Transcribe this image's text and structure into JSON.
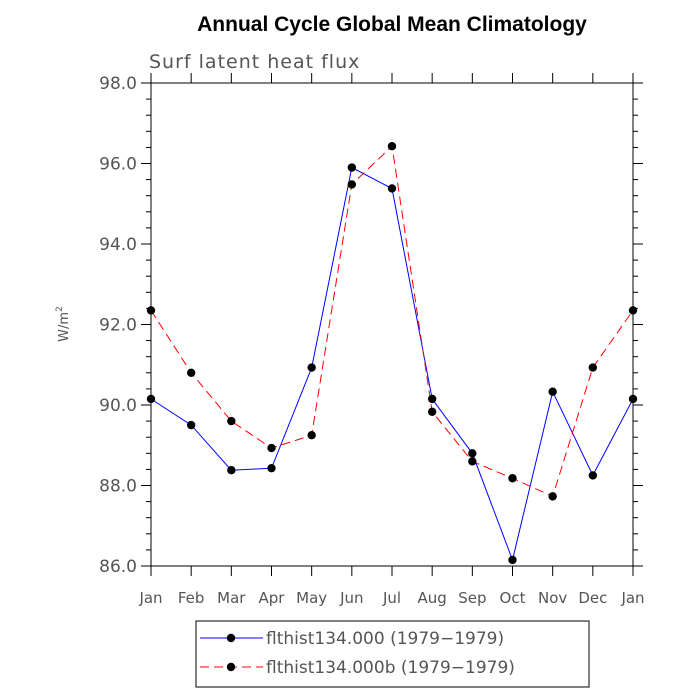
{
  "chart_data": {
    "type": "line",
    "title": "Annual Cycle Global Mean Climatology",
    "subtitle": "Surf latent heat flux",
    "ylabel": "W/m",
    "ylabel_sup": "2",
    "ylim": [
      86.0,
      98.0
    ],
    "yticks": [
      "86.0",
      "88.0",
      "90.0",
      "92.0",
      "94.0",
      "96.0",
      "98.0"
    ],
    "categories": [
      "Jan",
      "Feb",
      "Mar",
      "Apr",
      "May",
      "Jun",
      "Jul",
      "Aug",
      "Sep",
      "Oct",
      "Nov",
      "Dec",
      "Jan"
    ],
    "series": [
      {
        "name": "flthist134.000 (1979−1979)",
        "color": "#0000ff",
        "dash": "solid",
        "values": [
          90.15,
          89.5,
          88.38,
          88.43,
          90.93,
          95.9,
          95.38,
          90.15,
          88.8,
          86.15,
          90.33,
          88.25,
          90.15
        ]
      },
      {
        "name": "flthist134.000b (1979−1979)",
        "color": "#ff0000",
        "dash": "dashed",
        "values": [
          92.35,
          90.8,
          89.6,
          88.93,
          89.25,
          95.48,
          96.43,
          89.83,
          88.6,
          88.18,
          87.73,
          90.93,
          92.35
        ]
      }
    ],
    "legend_placement": "bottom-center",
    "grid": false
  }
}
